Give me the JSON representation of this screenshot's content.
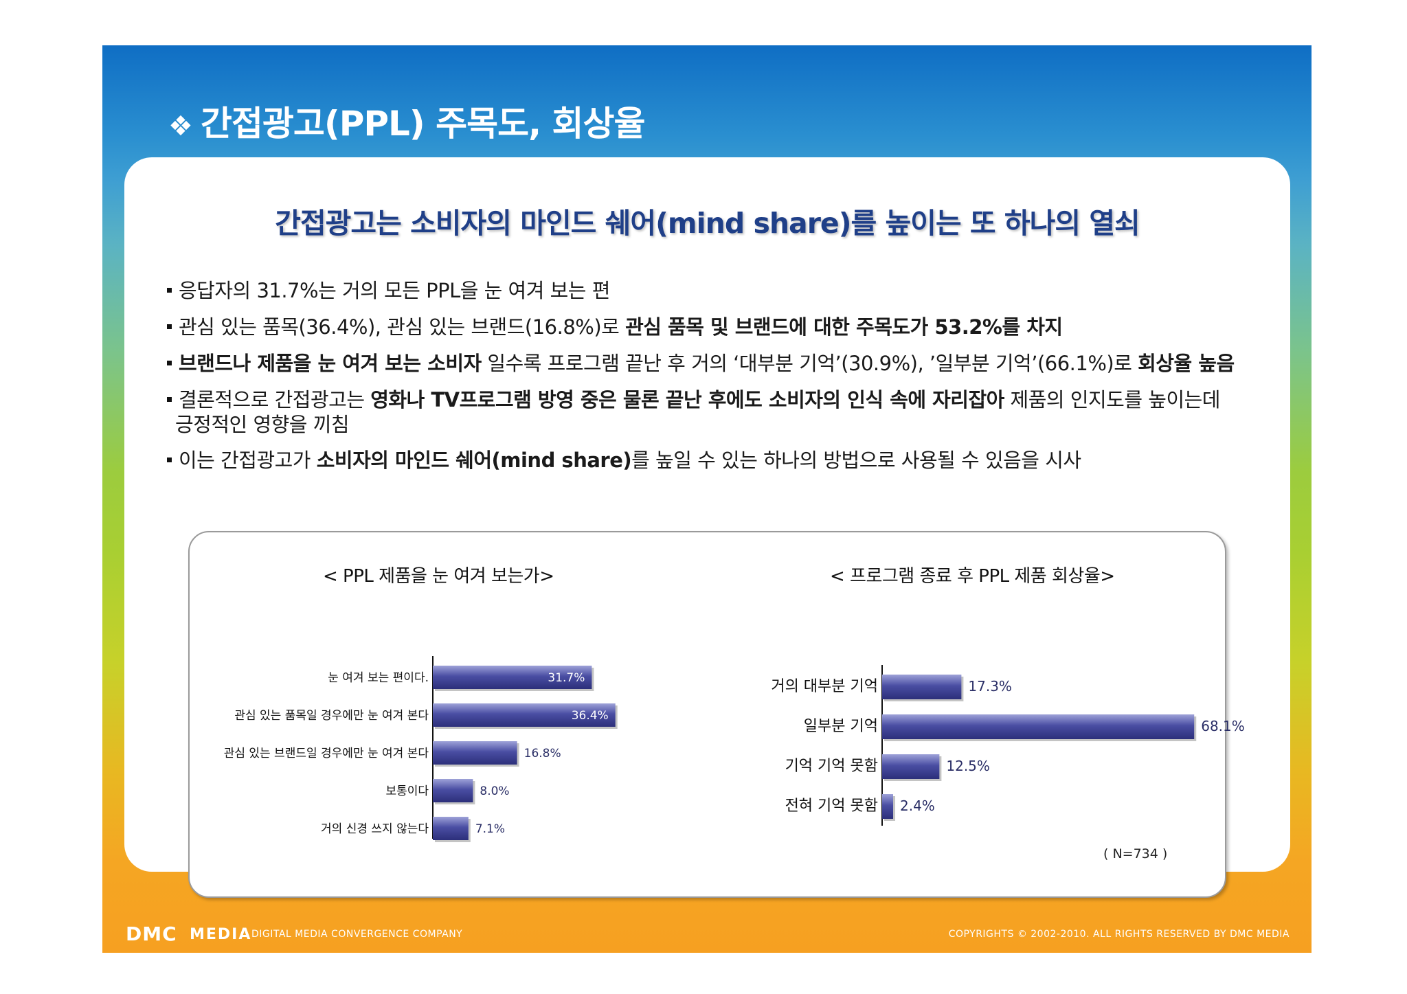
{
  "page": {
    "title": "간접광고(PPL) 주목도, 회상율",
    "title_marker": "❖",
    "subtitle": "간접광고는 소비자의 마인드 쉐어(mind share)를 높이는 또 하나의 열쇠"
  },
  "bullets": [
    {
      "segments": [
        {
          "text": "응답자의 31.7%는 거의 모든 PPL을 눈 여겨 보는 편",
          "bold": false
        }
      ]
    },
    {
      "segments": [
        {
          "text": "관심 있는 품목(36.4%), 관심 있는 브랜드(16.8%)로 ",
          "bold": false
        },
        {
          "text": "관심 품목 및 브랜드에 대한 주목도가 53.2%를 차지",
          "bold": true
        }
      ]
    },
    {
      "segments": [
        {
          "text": "브랜드나 제품을 눈 여겨 보는 소비자",
          "bold": true
        },
        {
          "text": " 일수록 프로그램 끝난 후 거의 ‘대부분 기억’(30.9%), ’일부분 기억’(66.1%)로 ",
          "bold": false
        },
        {
          "text": "회상율 높음",
          "bold": true
        }
      ]
    },
    {
      "segments": [
        {
          "text": "결론적으로 간접광고는 ",
          "bold": false
        },
        {
          "text": "영화나 TV프로그램 방영 중은 물론 끝난 후에도 소비자의 인식 속에 자리잡아",
          "bold": true
        },
        {
          "text": " 제품의 인지도를 높이는데",
          "bold": false
        }
      ],
      "continuation": "긍정적인 영향을 끼침"
    },
    {
      "segments": [
        {
          "text": "이는 간접광고가 ",
          "bold": false
        },
        {
          "text": "소비자의 마인드 쉐어(mind share)",
          "bold": true
        },
        {
          "text": "를 높일 수 있는 하나의 방법으로 사용될 수 있음을 시사",
          "bold": false
        }
      ]
    }
  ],
  "chart_data": [
    {
      "type": "bar",
      "orientation": "horizontal",
      "title": "< PPL 제품을 눈 여겨 보는가>",
      "categories": [
        "눈 여겨 보는 편이다.",
        "관심 있는 품목일 경우에만 눈 여겨 본다",
        "관심 있는 브랜드일 경우에만 눈 여겨 본다",
        "보통이다",
        "거의 신경 쓰지 않는다"
      ],
      "values": [
        31.7,
        36.4,
        16.8,
        8.0,
        7.1
      ],
      "value_labels": [
        "31.7%",
        "36.4%",
        "16.8%",
        "8.0%",
        "7.1%"
      ],
      "xlim": [
        0,
        100
      ],
      "grid": false,
      "bar_color": "#3b3f95"
    },
    {
      "type": "bar",
      "orientation": "horizontal",
      "title": "< 프로그램 종료 후 PPL 제품 회상율>",
      "categories": [
        "거의 대부분 기억",
        "일부분 기억",
        "기억 기억 못함",
        "전혀 기억 못함"
      ],
      "values": [
        17.3,
        68.1,
        12.5,
        2.4
      ],
      "value_labels": [
        "17.3%",
        "68.1%",
        "12.5%",
        "2.4%"
      ],
      "xlim": [
        0,
        100
      ],
      "grid": false,
      "bar_color": "#3b3f95"
    }
  ],
  "sample_note": "( N=734 )",
  "footer": {
    "logo": "DMC",
    "media": "MEDIA",
    "tagline": "DIGITAL MEDIA CONVERGENCE COMPANY",
    "copyright": "COPYRIGHTS © 2002-2010. ALL RIGHTS RESERVED BY DMC MEDIA"
  }
}
